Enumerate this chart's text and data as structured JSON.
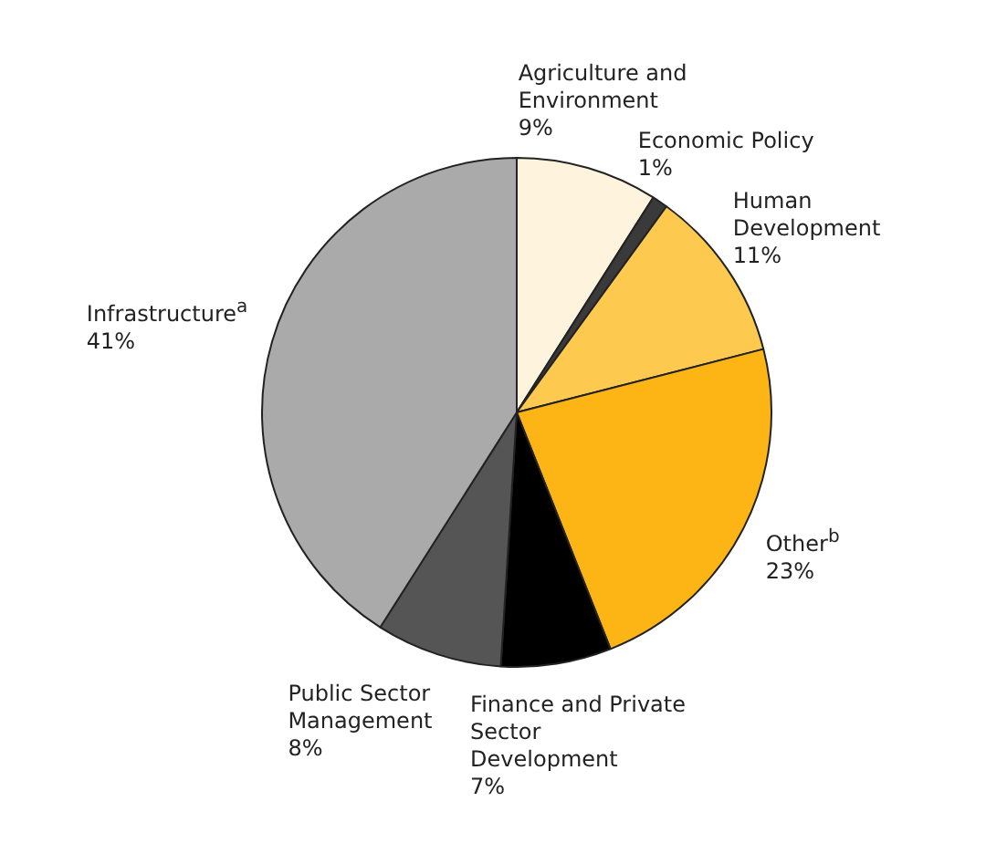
{
  "chart_data": {
    "type": "pie",
    "categories": [
      "Agriculture and Environment",
      "Economic Policy",
      "Human Development",
      "Other$^{b}$",
      "Finance and Private Sector Development",
      "Public Sector Management",
      "Infrastructure$^{a}$"
    ],
    "values": [
      9,
      1,
      11,
      23,
      7,
      8,
      41
    ],
    "value_labels": [
      "9%",
      "1%",
      "11%",
      "23%",
      "7%",
      "8%",
      "41%"
    ],
    "colors": [
      "#fef3dc",
      "#3a3a3a",
      "#fdc94f",
      "#fdb515",
      "#000000",
      "#555555",
      "#aaaaaa"
    ],
    "legend": false
  }
}
